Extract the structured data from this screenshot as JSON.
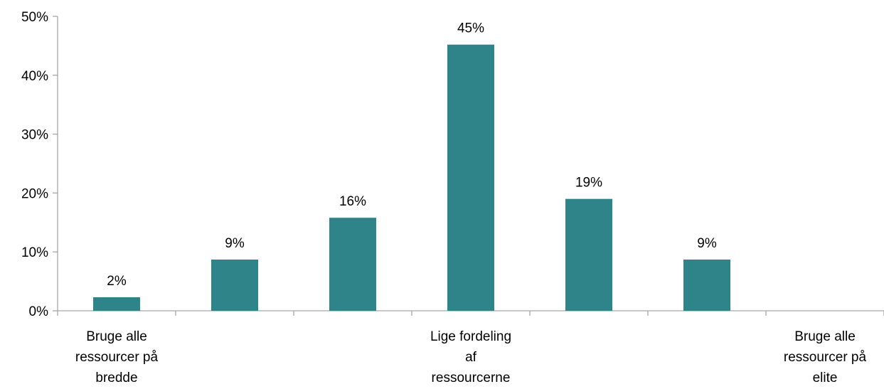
{
  "chart_data": {
    "type": "bar",
    "categories": [
      [
        "Bruge alle",
        "ressourcer på",
        "bredde"
      ],
      [],
      [],
      [
        "Lige fordeling",
        "af",
        "ressourcerne"
      ],
      [],
      [],
      [
        "Bruge alle",
        "ressourcer på",
        "elite"
      ]
    ],
    "values": [
      2.3,
      8.7,
      15.8,
      45.2,
      19.0,
      8.7,
      0
    ],
    "data_labels": [
      "2%",
      "9%",
      "16%",
      "45%",
      "19%",
      "9%",
      ""
    ],
    "ylim": [
      0,
      50
    ],
    "yticks": [
      0,
      10,
      20,
      30,
      40,
      50
    ],
    "ytick_labels": [
      "0%",
      "10%",
      "20%",
      "30%",
      "40%",
      "50%"
    ],
    "title": "",
    "xlabel": "",
    "ylabel": "",
    "grid": false,
    "legend": "none",
    "bar_color": "#2e8489",
    "axis_color": "#a6a6a6"
  }
}
